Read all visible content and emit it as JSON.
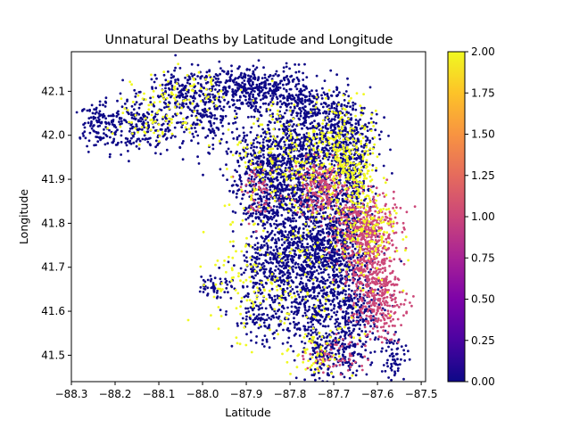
{
  "chart_data": {
    "type": "scatter",
    "title": "Unnatural Deaths by Latitude and Longitude",
    "xlabel": "Latitude",
    "ylabel": "Longitude",
    "xlim": [
      -88.3,
      -87.49
    ],
    "ylim": [
      41.44,
      42.19
    ],
    "x_ticks": [
      -88.3,
      -88.2,
      -88.1,
      -88.0,
      -87.9,
      -87.8,
      -87.7,
      -87.6,
      -87.5
    ],
    "x_tick_labels": [
      "−88.3",
      "−88.2",
      "−88.1",
      "−88.0",
      "−87.9",
      "−87.8",
      "−87.7",
      "−87.6",
      "−87.5"
    ],
    "y_ticks": [
      41.5,
      41.6,
      41.7,
      41.8,
      41.9,
      42.0,
      42.1
    ],
    "y_tick_labels": [
      "41.5",
      "41.6",
      "41.7",
      "41.8",
      "41.9",
      "42.0",
      "42.1"
    ],
    "colorbar": {
      "colormap": "plasma",
      "range": [
        0,
        2
      ],
      "ticks": [
        0,
        0.25,
        0.5,
        0.75,
        1.0,
        1.25,
        1.5,
        1.75,
        2.0
      ],
      "tick_labels": [
        "0.00",
        "0.25",
        "0.50",
        "0.75",
        "1.00",
        "1.25",
        "1.50",
        "1.75",
        "2.00"
      ]
    },
    "grid": false,
    "colors": {
      "category_0": "#0d0887",
      "category_1": "#cc4778",
      "category_2": "#f0f921"
    },
    "point_clusters": [
      {
        "x": -88.15,
        "y": 42.02,
        "sx": 0.06,
        "sy": 0.03,
        "n": 260,
        "c": 0
      },
      {
        "x": -88.1,
        "y": 42.03,
        "sx": 0.05,
        "sy": 0.02,
        "n": 60,
        "c": 2
      },
      {
        "x": -88.24,
        "y": 42.03,
        "sx": 0.02,
        "sy": 0.02,
        "n": 70,
        "c": 0
      },
      {
        "x": -88.04,
        "y": 42.1,
        "sx": 0.05,
        "sy": 0.025,
        "n": 200,
        "c": 0
      },
      {
        "x": -88.05,
        "y": 42.1,
        "sx": 0.05,
        "sy": 0.025,
        "n": 70,
        "c": 2
      },
      {
        "x": -87.91,
        "y": 42.1,
        "sx": 0.06,
        "sy": 0.03,
        "n": 260,
        "c": 0
      },
      {
        "x": -87.85,
        "y": 42.11,
        "sx": 0.05,
        "sy": 0.025,
        "n": 160,
        "c": 0
      },
      {
        "x": -87.99,
        "y": 42.03,
        "sx": 0.04,
        "sy": 0.03,
        "n": 120,
        "c": 0
      },
      {
        "x": -87.75,
        "y": 42.06,
        "sx": 0.05,
        "sy": 0.03,
        "n": 260,
        "c": 0
      },
      {
        "x": -87.8,
        "y": 41.97,
        "sx": 0.06,
        "sy": 0.04,
        "n": 420,
        "c": 0
      },
      {
        "x": -87.68,
        "y": 42.0,
        "sx": 0.04,
        "sy": 0.04,
        "n": 280,
        "c": 0
      },
      {
        "x": -87.68,
        "y": 41.99,
        "sx": 0.04,
        "sy": 0.05,
        "n": 140,
        "c": 2
      },
      {
        "x": -87.87,
        "y": 41.88,
        "sx": 0.03,
        "sy": 0.06,
        "n": 330,
        "c": 0
      },
      {
        "x": -87.87,
        "y": 41.87,
        "sx": 0.02,
        "sy": 0.03,
        "n": 60,
        "c": 1
      },
      {
        "x": -87.78,
        "y": 41.88,
        "sx": 0.04,
        "sy": 0.05,
        "n": 420,
        "c": 0
      },
      {
        "x": -87.73,
        "y": 41.88,
        "sx": 0.03,
        "sy": 0.03,
        "n": 210,
        "c": 1
      },
      {
        "x": -87.66,
        "y": 41.9,
        "sx": 0.025,
        "sy": 0.05,
        "n": 250,
        "c": 0
      },
      {
        "x": -87.65,
        "y": 41.9,
        "sx": 0.025,
        "sy": 0.05,
        "n": 140,
        "c": 2
      },
      {
        "x": -87.63,
        "y": 41.79,
        "sx": 0.035,
        "sy": 0.04,
        "n": 380,
        "c": 1
      },
      {
        "x": -87.68,
        "y": 41.8,
        "sx": 0.03,
        "sy": 0.04,
        "n": 200,
        "c": 0
      },
      {
        "x": -87.62,
        "y": 41.78,
        "sx": 0.03,
        "sy": 0.04,
        "n": 100,
        "c": 2
      },
      {
        "x": -87.76,
        "y": 41.75,
        "sx": 0.05,
        "sy": 0.04,
        "n": 380,
        "c": 0
      },
      {
        "x": -87.82,
        "y": 41.7,
        "sx": 0.05,
        "sy": 0.04,
        "n": 330,
        "c": 0
      },
      {
        "x": -87.7,
        "y": 41.7,
        "sx": 0.04,
        "sy": 0.04,
        "n": 300,
        "c": 0
      },
      {
        "x": -87.62,
        "y": 41.7,
        "sx": 0.03,
        "sy": 0.04,
        "n": 200,
        "c": 1
      },
      {
        "x": -87.6,
        "y": 41.62,
        "sx": 0.03,
        "sy": 0.04,
        "n": 240,
        "c": 1
      },
      {
        "x": -87.65,
        "y": 41.6,
        "sx": 0.04,
        "sy": 0.04,
        "n": 220,
        "c": 0
      },
      {
        "x": -87.75,
        "y": 41.6,
        "sx": 0.05,
        "sy": 0.04,
        "n": 260,
        "c": 0
      },
      {
        "x": -87.87,
        "y": 41.58,
        "sx": 0.03,
        "sy": 0.03,
        "n": 100,
        "c": 0
      },
      {
        "x": -87.7,
        "y": 41.5,
        "sx": 0.04,
        "sy": 0.03,
        "n": 200,
        "c": 0
      },
      {
        "x": -87.69,
        "y": 41.5,
        "sx": 0.035,
        "sy": 0.025,
        "n": 60,
        "c": 1
      },
      {
        "x": -87.75,
        "y": 41.5,
        "sx": 0.03,
        "sy": 0.03,
        "n": 50,
        "c": 2
      },
      {
        "x": -87.56,
        "y": 41.5,
        "sx": 0.015,
        "sy": 0.03,
        "n": 60,
        "c": 0
      },
      {
        "x": -87.97,
        "y": 41.66,
        "sx": 0.02,
        "sy": 0.015,
        "n": 50,
        "c": 0
      },
      {
        "x": -87.9,
        "y": 41.67,
        "sx": 0.04,
        "sy": 0.06,
        "n": 90,
        "c": 2
      },
      {
        "x": -87.8,
        "y": 41.95,
        "sx": 0.08,
        "sy": 0.07,
        "n": 220,
        "c": 2
      },
      {
        "x": -87.74,
        "y": 41.72,
        "sx": 0.08,
        "sy": 0.12,
        "n": 180,
        "c": 2
      }
    ]
  }
}
